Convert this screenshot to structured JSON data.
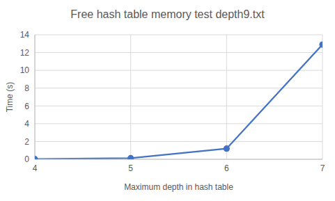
{
  "chart_data": {
    "type": "line",
    "title": "Free hash table memory test depth9.txt",
    "x_label": "Maximum depth in hash table",
    "y_label": "Time (s)",
    "x": [
      4,
      5,
      6,
      7
    ],
    "values": [
      0.02,
      0.12,
      1.2,
      12.9
    ],
    "color": "#4472c4",
    "marker": "circle",
    "line_style": "solid",
    "xlim": [
      4,
      7
    ],
    "xticks": [
      4,
      5,
      6,
      7
    ],
    "ylim": [
      0,
      14
    ],
    "yticks": [
      0,
      2,
      4,
      6,
      8,
      10,
      12,
      14
    ],
    "grid": true
  }
}
